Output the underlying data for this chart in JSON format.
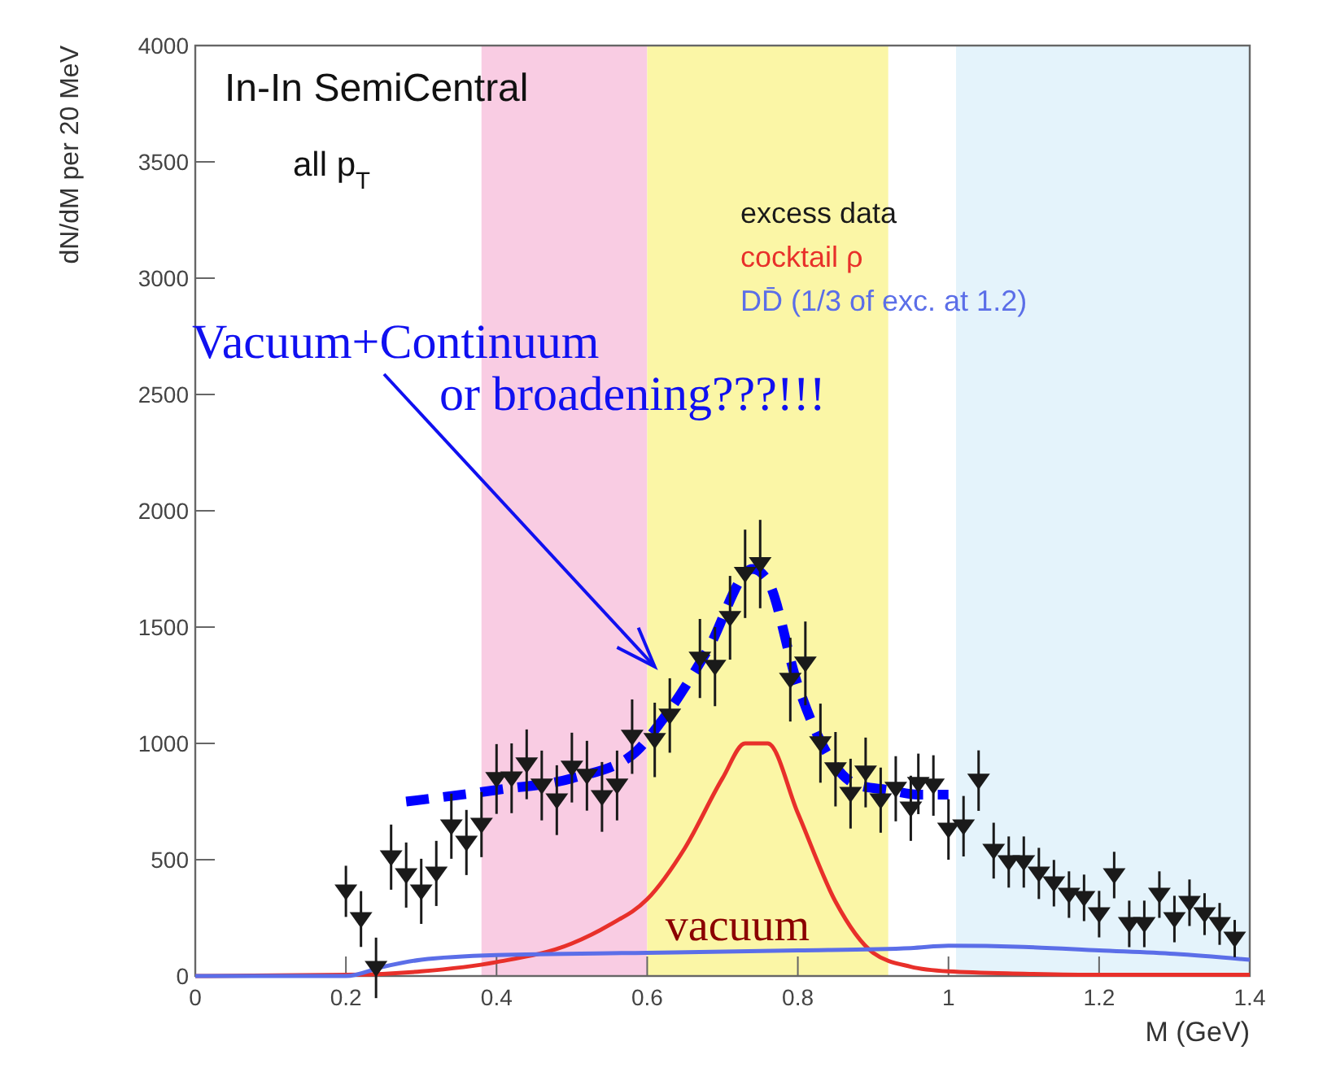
{
  "chart_data": {
    "type": "scatter",
    "title": "In-In SemiCentral",
    "subtitle": "all p$_{T}$",
    "xlabel": "M (GeV)",
    "ylabel": "dN/dM per 20 MeV",
    "xlim": [
      0,
      1.4
    ],
    "xticks": [
      0,
      0.2,
      0.4,
      0.6,
      0.8,
      1,
      1.2,
      1.4
    ],
    "ylim": [
      0,
      4000
    ],
    "yticks": [
      0,
      500,
      1000,
      1500,
      2000,
      2500,
      3000,
      3500,
      4000
    ],
    "grid": false,
    "legend": "top right",
    "bands": [
      {
        "axis": "x",
        "from": 0.38,
        "to": 0.6,
        "color": "#f9cce3"
      },
      {
        "axis": "x",
        "from": 0.6,
        "to": 0.92,
        "color": "#fbf6a6"
      },
      {
        "axis": "x",
        "from": 1.01,
        "to": 1.4,
        "color": "#e4f3fb"
      }
    ],
    "series": [
      {
        "name": "excess data",
        "marker": "triangle",
        "color": "#1a1a1a",
        "x": [
          0.2,
          0.22,
          0.24,
          0.26,
          0.28,
          0.3,
          0.32,
          0.34,
          0.36,
          0.38,
          0.4,
          0.42,
          0.44,
          0.46,
          0.48,
          0.5,
          0.52,
          0.54,
          0.56,
          0.58,
          0.61,
          0.63,
          0.67,
          0.69,
          0.71,
          0.73,
          0.75,
          0.79,
          0.81,
          0.83,
          0.85,
          0.87,
          0.89,
          0.91,
          0.93,
          0.95,
          0.96,
          0.98,
          1.0,
          1.02,
          1.04,
          1.06,
          1.08,
          1.1,
          1.12,
          1.14,
          1.16,
          1.18,
          1.2,
          1.22,
          1.24,
          1.26,
          1.28,
          1.3,
          1.32,
          1.34,
          1.36,
          1.38
        ],
        "values": [
          364,
          245,
          35,
          511,
          434,
          364,
          441,
          644,
          574,
          651,
          847,
          850,
          910,
          819,
          756,
          896,
          861,
          770,
          819,
          1029,
          1015,
          1120,
          1365,
          1330,
          1540,
          1729,
          1771,
          1274,
          1344,
          1001,
          889,
          784,
          875,
          756,
          805,
          721,
          826,
          819,
          630,
          644,
          840,
          539,
          490,
          490,
          441,
          399,
          350,
          336,
          266,
          434,
          224,
          224,
          350,
          245,
          315,
          266,
          224,
          161
        ],
        "errors": [
          110,
          120,
          130,
          140,
          140,
          140,
          140,
          140,
          140,
          140,
          150,
          150,
          150,
          150,
          150,
          150,
          150,
          150,
          150,
          160,
          160,
          160,
          170,
          170,
          180,
          190,
          190,
          180,
          180,
          170,
          160,
          150,
          150,
          140,
          140,
          140,
          130,
          130,
          130,
          130,
          130,
          120,
          110,
          110,
          110,
          100,
          100,
          100,
          100,
          100,
          100,
          100,
          100,
          100,
          100,
          90,
          90,
          80
        ]
      },
      {
        "name": "cocktail ρ",
        "type": "line",
        "color": "#e8302a",
        "x": [
          0,
          0.2,
          0.3,
          0.4,
          0.5,
          0.55,
          0.6,
          0.65,
          0.7,
          0.73,
          0.76,
          0.8,
          0.85,
          0.9,
          0.95,
          1.0,
          1.1,
          1.2,
          1.4
        ],
        "values": [
          0,
          5,
          20,
          60,
          140,
          220,
          330,
          550,
          850,
          1000,
          1000,
          700,
          320,
          100,
          40,
          20,
          10,
          5,
          5
        ]
      },
      {
        "name": "DD̄ (1/3 of exc. at 1.2)",
        "type": "line",
        "color": "#5b6ee8",
        "x": [
          0,
          0.2,
          0.25,
          0.3,
          0.4,
          0.6,
          0.8,
          0.95,
          1.0,
          1.1,
          1.2,
          1.3,
          1.4
        ],
        "values": [
          0,
          0,
          40,
          70,
          90,
          100,
          110,
          120,
          130,
          125,
          110,
          95,
          70
        ]
      },
      {
        "type": "line",
        "color": "#0000ff",
        "line_style": "dashed",
        "x": [
          0.28,
          0.4,
          0.5,
          0.58,
          0.62,
          0.68,
          0.74,
          0.76,
          0.8,
          0.84,
          0.88,
          0.92,
          0.96,
          1.0
        ],
        "values": [
          750,
          800,
          850,
          950,
          1100,
          1400,
          1750,
          1700,
          1250,
          950,
          820,
          800,
          780,
          780
        ]
      }
    ],
    "annotations": [
      {
        "text": "Vacuum+Continuum\nor broadening???!!!",
        "x": 0.61,
        "y": 1330
      },
      {
        "text": "vacuum",
        "x": 0.72,
        "y": 140
      }
    ]
  }
}
